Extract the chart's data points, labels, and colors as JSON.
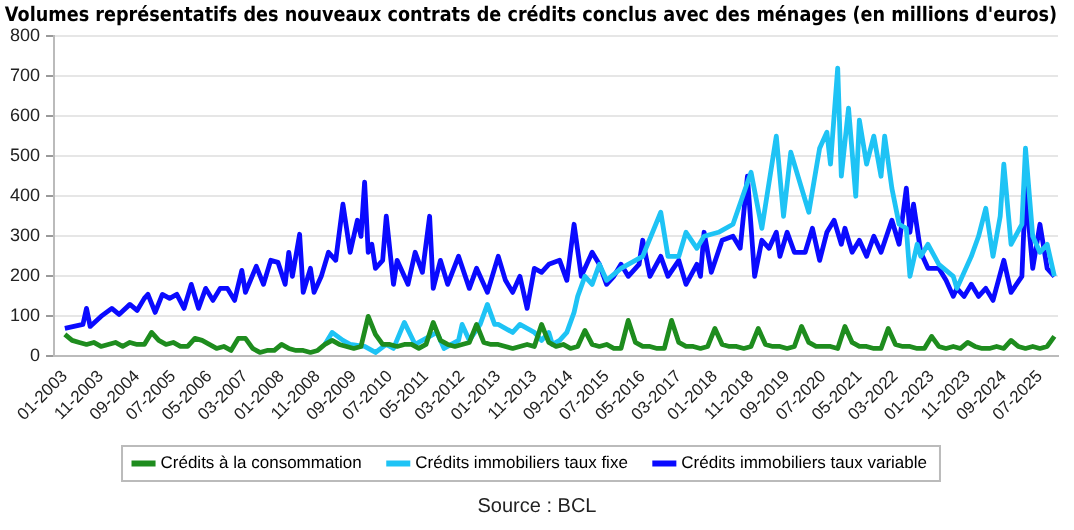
{
  "chart_data": {
    "type": "line",
    "title": "Volumes représentatifs des nouveaux contrats de crédits conclus avec des ménages (en millions d'euros)",
    "annotations": [
      "Source : BCL"
    ],
    "xlim": [
      "2002-10",
      "2025-12"
    ],
    "xticks": [
      {
        "value": "2003-01",
        "label": "01-2003"
      },
      {
        "value": "2003-11",
        "label": "11-2003"
      },
      {
        "value": "2004-09",
        "label": "09-2004"
      },
      {
        "value": "2005-07",
        "label": "07-2005"
      },
      {
        "value": "2006-05",
        "label": "05-2006"
      },
      {
        "value": "2007-03",
        "label": "03-2007"
      },
      {
        "value": "2008-01",
        "label": "01-2008"
      },
      {
        "value": "2008-11",
        "label": "11-2008"
      },
      {
        "value": "2009-09",
        "label": "09-2009"
      },
      {
        "value": "2010-07",
        "label": "07-2010"
      },
      {
        "value": "2011-05",
        "label": "05-2011"
      },
      {
        "value": "2012-03",
        "label": "03-2012"
      },
      {
        "value": "2013-01",
        "label": "01-2013"
      },
      {
        "value": "2013-11",
        "label": "11-2013"
      },
      {
        "value": "2014-09",
        "label": "09-2014"
      },
      {
        "value": "2015-07",
        "label": "07-2015"
      },
      {
        "value": "2016-05",
        "label": "05-2016"
      },
      {
        "value": "2017-03",
        "label": "03-2017"
      },
      {
        "value": "2018-01",
        "label": "01-2018"
      },
      {
        "value": "2018-11",
        "label": "11-2018"
      },
      {
        "value": "2019-09",
        "label": "09-2019"
      },
      {
        "value": "2020-07",
        "label": "07-2020"
      },
      {
        "value": "2021-05",
        "label": "05-2021"
      },
      {
        "value": "2022-03",
        "label": "03-2022"
      },
      {
        "value": "2023-01",
        "label": "01-2023"
      },
      {
        "value": "2023-11",
        "label": "11-2023"
      },
      {
        "value": "2024-09",
        "label": "09-2024"
      },
      {
        "value": "2025-07",
        "label": "07-2025"
      }
    ],
    "ylim": [
      0,
      800
    ],
    "yticks": [
      0,
      100,
      200,
      300,
      400,
      500,
      600,
      700,
      800
    ],
    "grid": "y",
    "legend": "bottom",
    "marker": "none",
    "line_style": "solid",
    "series": [
      {
        "name": "Crédits à la consommation",
        "color": "#1e8c1e",
        "x": [
          "2003-01",
          "2003-03",
          "2003-05",
          "2003-07",
          "2003-09",
          "2003-11",
          "2004-01",
          "2004-03",
          "2004-05",
          "2004-07",
          "2004-09",
          "2004-11",
          "2005-01",
          "2005-03",
          "2005-05",
          "2005-07",
          "2005-09",
          "2005-11",
          "2006-01",
          "2006-03",
          "2006-05",
          "2006-07",
          "2006-09",
          "2006-11",
          "2007-01",
          "2007-03",
          "2007-05",
          "2007-07",
          "2007-09",
          "2007-11",
          "2008-01",
          "2008-03",
          "2008-05",
          "2008-07",
          "2008-09",
          "2008-11",
          "2009-01",
          "2009-03",
          "2009-05",
          "2009-07",
          "2009-09",
          "2009-11",
          "2010-01",
          "2010-03",
          "2010-05",
          "2010-07",
          "2010-09",
          "2010-11",
          "2011-01",
          "2011-03",
          "2011-05",
          "2011-07",
          "2011-09",
          "2011-11",
          "2012-01",
          "2012-03",
          "2012-05",
          "2012-07",
          "2012-09",
          "2012-11",
          "2013-01",
          "2013-03",
          "2013-05",
          "2013-07",
          "2013-09",
          "2013-11",
          "2014-01",
          "2014-03",
          "2014-05",
          "2014-07",
          "2014-09",
          "2014-11",
          "2015-01",
          "2015-03",
          "2015-05",
          "2015-07",
          "2015-09",
          "2015-11",
          "2016-01",
          "2016-03",
          "2016-05",
          "2016-07",
          "2016-09",
          "2016-11",
          "2017-01",
          "2017-03",
          "2017-05",
          "2017-07",
          "2017-09",
          "2017-11",
          "2018-01",
          "2018-03",
          "2018-05",
          "2018-07",
          "2018-09",
          "2018-11",
          "2019-01",
          "2019-03",
          "2019-05",
          "2019-07",
          "2019-09",
          "2019-11",
          "2020-01",
          "2020-03",
          "2020-05",
          "2020-07",
          "2020-09",
          "2020-11",
          "2021-01",
          "2021-03",
          "2021-05",
          "2021-07",
          "2021-09",
          "2021-11",
          "2022-01",
          "2022-03",
          "2022-05",
          "2022-07",
          "2022-09",
          "2022-11",
          "2023-01",
          "2023-03",
          "2023-05",
          "2023-07",
          "2023-09",
          "2023-11",
          "2024-01",
          "2024-03",
          "2024-05",
          "2024-07",
          "2024-09",
          "2024-11",
          "2025-01",
          "2025-03",
          "2025-05",
          "2025-07",
          "2025-09",
          "2025-11"
        ],
        "values": [
          55,
          40,
          35,
          30,
          35,
          25,
          30,
          35,
          25,
          35,
          30,
          30,
          60,
          40,
          30,
          35,
          25,
          25,
          45,
          40,
          30,
          20,
          25,
          15,
          45,
          45,
          20,
          10,
          15,
          15,
          30,
          20,
          15,
          15,
          10,
          15,
          30,
          40,
          30,
          25,
          20,
          25,
          100,
          55,
          30,
          30,
          25,
          30,
          30,
          20,
          30,
          85,
          40,
          30,
          25,
          30,
          35,
          80,
          35,
          30,
          30,
          25,
          20,
          25,
          30,
          25,
          80,
          35,
          25,
          30,
          20,
          25,
          65,
          30,
          25,
          30,
          20,
          20,
          90,
          35,
          25,
          25,
          20,
          20,
          90,
          35,
          25,
          25,
          20,
          25,
          70,
          30,
          25,
          25,
          20,
          25,
          70,
          30,
          25,
          25,
          20,
          25,
          75,
          35,
          25,
          25,
          25,
          20,
          75,
          35,
          25,
          25,
          20,
          20,
          70,
          30,
          25,
          25,
          20,
          20,
          50,
          25,
          20,
          25,
          20,
          35,
          25,
          20,
          20,
          25,
          20,
          40,
          25,
          20,
          25,
          20,
          25,
          50
        ]
      },
      {
        "name": "Crédits immobiliers taux fixe",
        "color": "#1ec3f5",
        "x": [
          "2009-01",
          "2009-03",
          "2009-06",
          "2009-08",
          "2009-12",
          "2010-01",
          "2010-03",
          "2010-06",
          "2010-08",
          "2010-11",
          "2011-02",
          "2011-08",
          "2011-10",
          "2012-02",
          "2012-03",
          "2012-05",
          "2012-08",
          "2012-10",
          "2012-12",
          "2013-01",
          "2013-05",
          "2013-07",
          "2013-11",
          "2014-01",
          "2014-03",
          "2014-04",
          "2014-06",
          "2014-08",
          "2014-10",
          "2014-11",
          "2015-01",
          "2015-03",
          "2015-05",
          "2015-07",
          "2015-11",
          "2016-05",
          "2016-10",
          "2016-12",
          "2017-03",
          "2017-05",
          "2017-08",
          "2017-10",
          "2018-02",
          "2018-06",
          "2018-11",
          "2019-02",
          "2019-06",
          "2019-08",
          "2019-10",
          "2020-01",
          "2020-03",
          "2020-06",
          "2020-08",
          "2020-09",
          "2020-11",
          "2020-12",
          "2021-02",
          "2021-04",
          "2021-05",
          "2021-07",
          "2021-09",
          "2021-11",
          "2021-12",
          "2022-02",
          "2022-04",
          "2022-06",
          "2022-07",
          "2022-09",
          "2022-10",
          "2022-12",
          "2023-03",
          "2023-07",
          "2023-08",
          "2023-12",
          "2024-02",
          "2024-04",
          "2024-06",
          "2024-08",
          "2024-09",
          "2024-11",
          "2025-02",
          "2025-03",
          "2025-05",
          "2025-07",
          "2025-09",
          "2025-11"
        ],
        "values": [
          30,
          60,
          40,
          30,
          25,
          20,
          10,
          30,
          20,
          85,
          30,
          60,
          20,
          40,
          80,
          40,
          80,
          130,
          80,
          80,
          60,
          80,
          60,
          40,
          60,
          30,
          40,
          60,
          110,
          150,
          200,
          180,
          230,
          190,
          220,
          250,
          360,
          250,
          250,
          310,
          270,
          300,
          310,
          330,
          460,
          320,
          550,
          350,
          510,
          420,
          360,
          520,
          560,
          480,
          720,
          450,
          620,
          400,
          590,
          480,
          550,
          450,
          550,
          420,
          330,
          320,
          200,
          280,
          250,
          280,
          230,
          200,
          170,
          250,
          300,
          370,
          250,
          350,
          480,
          280,
          330,
          520,
          300,
          260,
          280,
          200
        ]
      },
      {
        "name": "Crédits immobiliers taux variable",
        "color": "#0a0aff",
        "x": [
          "2003-01",
          "2003-06",
          "2003-07",
          "2003-08",
          "2003-11",
          "2004-02",
          "2004-04",
          "2004-07",
          "2004-09",
          "2004-11",
          "2004-12",
          "2005-02",
          "2005-04",
          "2005-06",
          "2005-08",
          "2005-10",
          "2005-12",
          "2006-02",
          "2006-04",
          "2006-06",
          "2006-08",
          "2006-10",
          "2006-12",
          "2007-02",
          "2007-03",
          "2007-06",
          "2007-08",
          "2007-10",
          "2007-12",
          "2008-02",
          "2008-03",
          "2008-04",
          "2008-06",
          "2008-07",
          "2008-09",
          "2008-10",
          "2008-12",
          "2009-02",
          "2009-04",
          "2009-06",
          "2009-08",
          "2009-10",
          "2009-11",
          "2009-12",
          "2010-01",
          "2010-02",
          "2010-03",
          "2010-05",
          "2010-06",
          "2010-08",
          "2010-09",
          "2010-12",
          "2011-02",
          "2011-04",
          "2011-06",
          "2011-07",
          "2011-09",
          "2011-11",
          "2012-02",
          "2012-05",
          "2012-07",
          "2012-10",
          "2013-01",
          "2013-03",
          "2013-05",
          "2013-07",
          "2013-09",
          "2013-11",
          "2014-01",
          "2014-03",
          "2014-06",
          "2014-08",
          "2014-10",
          "2014-12",
          "2015-03",
          "2015-05",
          "2015-07",
          "2015-09",
          "2015-11",
          "2016-01",
          "2016-04",
          "2016-05",
          "2016-07",
          "2016-10",
          "2016-12",
          "2017-03",
          "2017-05",
          "2017-08",
          "2017-09",
          "2017-10",
          "2017-12",
          "2018-03",
          "2018-06",
          "2018-08",
          "2018-10",
          "2018-12",
          "2019-02",
          "2019-04",
          "2019-06",
          "2019-07",
          "2019-09",
          "2019-11",
          "2020-02",
          "2020-04",
          "2020-06",
          "2020-08",
          "2020-10",
          "2020-12",
          "2021-01",
          "2021-03",
          "2021-05",
          "2021-07",
          "2021-09",
          "2021-11",
          "2022-02",
          "2022-04",
          "2022-06",
          "2022-07",
          "2022-08",
          "2022-10",
          "2022-12",
          "2023-03",
          "2023-05",
          "2023-07",
          "2023-08",
          "2023-10",
          "2023-12",
          "2024-02",
          "2024-04",
          "2024-06",
          "2024-09",
          "2024-11",
          "2025-02",
          "2025-03",
          "2025-05",
          "2025-07",
          "2025-09",
          "2025-11"
        ],
        "values": [
          70,
          80,
          120,
          75,
          100,
          120,
          105,
          130,
          115,
          145,
          155,
          110,
          155,
          145,
          155,
          120,
          180,
          120,
          170,
          140,
          170,
          170,
          140,
          215,
          160,
          225,
          180,
          240,
          235,
          180,
          260,
          200,
          305,
          160,
          220,
          160,
          200,
          260,
          240,
          380,
          260,
          340,
          300,
          435,
          260,
          280,
          220,
          240,
          350,
          180,
          240,
          180,
          260,
          210,
          350,
          170,
          240,
          180,
          250,
          170,
          220,
          160,
          250,
          190,
          160,
          200,
          120,
          220,
          210,
          230,
          240,
          190,
          330,
          200,
          260,
          230,
          180,
          200,
          230,
          200,
          230,
          290,
          200,
          250,
          200,
          240,
          180,
          230,
          200,
          310,
          210,
          290,
          300,
          270,
          450,
          200,
          290,
          270,
          310,
          250,
          310,
          260,
          260,
          320,
          240,
          310,
          340,
          280,
          320,
          260,
          290,
          250,
          300,
          260,
          340,
          280,
          420,
          310,
          380,
          260,
          220,
          220,
          190,
          150,
          170,
          150,
          180,
          150,
          170,
          140,
          240,
          160,
          200,
          420,
          220,
          330,
          220,
          200
        ]
      }
    ]
  }
}
